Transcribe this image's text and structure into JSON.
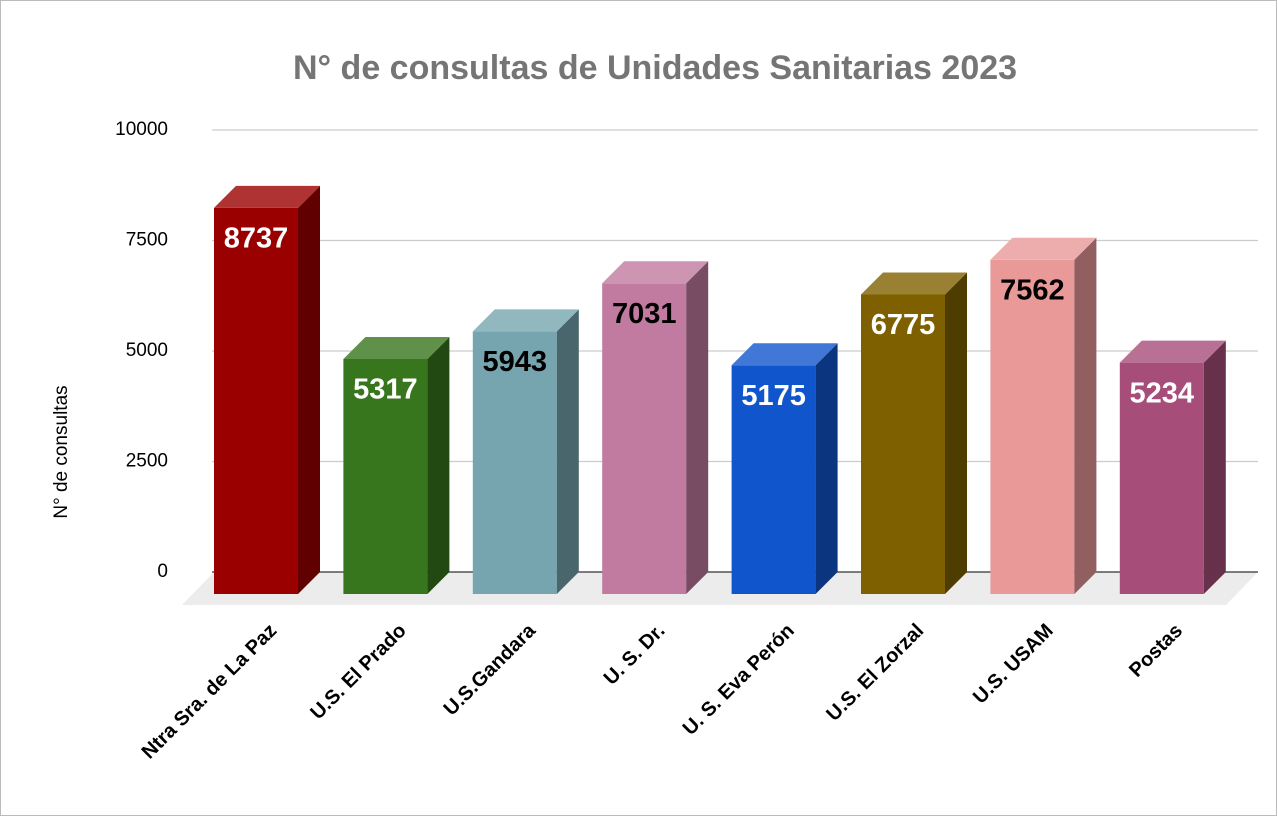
{
  "chart_data": {
    "type": "bar3d",
    "title": "N° de consultas de Unidades Sanitarias 2023",
    "y_label": "N° de consultas",
    "categories": [
      "Ntra Sra. de La Paz",
      "U.S. El Prado",
      "U.S.Gandara",
      "U. S. Dr.",
      "U. S. Eva Perón",
      "U.S. El Zorzal",
      "U.S. USAM",
      "Postas"
    ],
    "values": [
      8737,
      5317,
      5943,
      7031,
      5175,
      6775,
      7562,
      5234
    ],
    "colors": [
      "#9b0000",
      "#38761d",
      "#76a5af",
      "#c27ba0",
      "#1155cc",
      "#7f6000",
      "#ea9999",
      "#a64d79"
    ],
    "value_label_colors": [
      "#ffffff",
      "#ffffff",
      "#000000",
      "#000000",
      "#ffffff",
      "#ffffff",
      "#000000",
      "#ffffff"
    ],
    "ylim": [
      0,
      10000
    ],
    "yticks": [
      0,
      2500,
      5000,
      7500,
      10000
    ],
    "grid": true
  }
}
